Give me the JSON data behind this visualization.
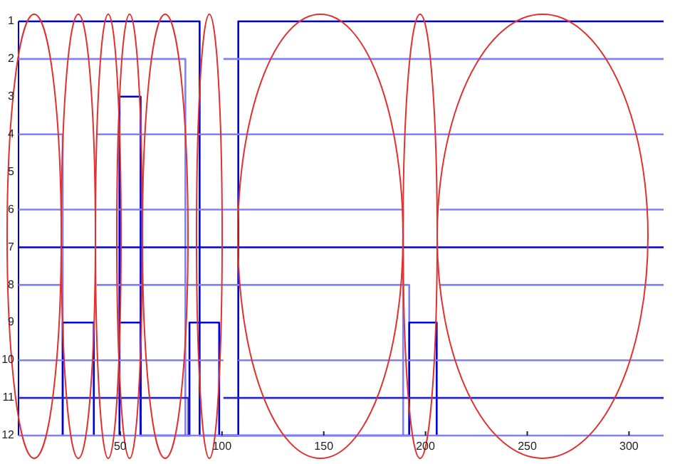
{
  "chart_data": {
    "type": "line",
    "xlim": [
      0,
      317
    ],
    "ylim": [
      12,
      1
    ],
    "xticks": [
      50,
      100,
      150,
      200,
      250,
      300
    ],
    "yticks": [
      1,
      2,
      3,
      4,
      5,
      6,
      7,
      8,
      9,
      10,
      11,
      12
    ],
    "grid": false,
    "marker": "none",
    "line_style": "solid",
    "series": [
      {
        "color": "#0000dd",
        "x": [
          0,
          89,
          89,
          108,
          108,
          317
        ],
        "values": [
          1,
          1,
          12,
          12,
          1,
          1
        ]
      },
      {
        "color": "#8080ff",
        "x": [
          0,
          82,
          82,
          null,
          100.7,
          317
        ],
        "values": [
          2,
          2,
          12,
          null,
          2,
          2
        ]
      },
      {
        "color": "#0000dd",
        "x": [
          49.6,
          49.6,
          60,
          60
        ],
        "values": [
          12,
          3,
          3,
          12
        ]
      },
      {
        "color": "#8080ff",
        "x": [
          0,
          21.7,
          21.7,
          null,
          38.4,
          317
        ],
        "values": [
          4,
          4,
          12,
          null,
          4,
          4
        ]
      },
      {
        "color": "#8080ff",
        "x": [
          0,
          189,
          189,
          null,
          207,
          317
        ],
        "values": [
          6,
          6,
          12,
          null,
          6,
          6
        ]
      },
      {
        "color": "#0000dd",
        "x": [
          0,
          317
        ],
        "values": [
          7,
          7
        ]
      },
      {
        "color": "#8080ff",
        "x": [
          0,
          21.7,
          null,
          38.4,
          192,
          192,
          null,
          207,
          317
        ],
        "values": [
          8,
          8,
          null,
          8,
          8,
          12,
          null,
          8,
          8
        ]
      },
      {
        "color": "#0000dd",
        "x": [
          21.7,
          21.7,
          37,
          37,
          null,
          50,
          60,
          60,
          84,
          84,
          98.6,
          98.6,
          192,
          192,
          205.5,
          205.5
        ],
        "values": [
          12,
          9,
          9,
          12,
          null,
          9,
          9,
          12,
          12,
          9,
          9,
          12,
          12,
          9,
          9,
          12
        ]
      },
      {
        "color": "#8080ff",
        "x": [
          0,
          100.7,
          null,
          108,
          317
        ],
        "values": [
          10,
          10,
          null,
          10,
          10
        ]
      },
      {
        "color": "#2828c0",
        "x": [
          0,
          83.5,
          83.5,
          null,
          100.7,
          317
        ],
        "values": [
          11,
          11,
          12,
          null,
          11,
          11
        ]
      },
      {
        "color": "#8080ff",
        "x": [
          0,
          317
        ],
        "values": [
          12,
          12
        ]
      }
    ]
  }
}
